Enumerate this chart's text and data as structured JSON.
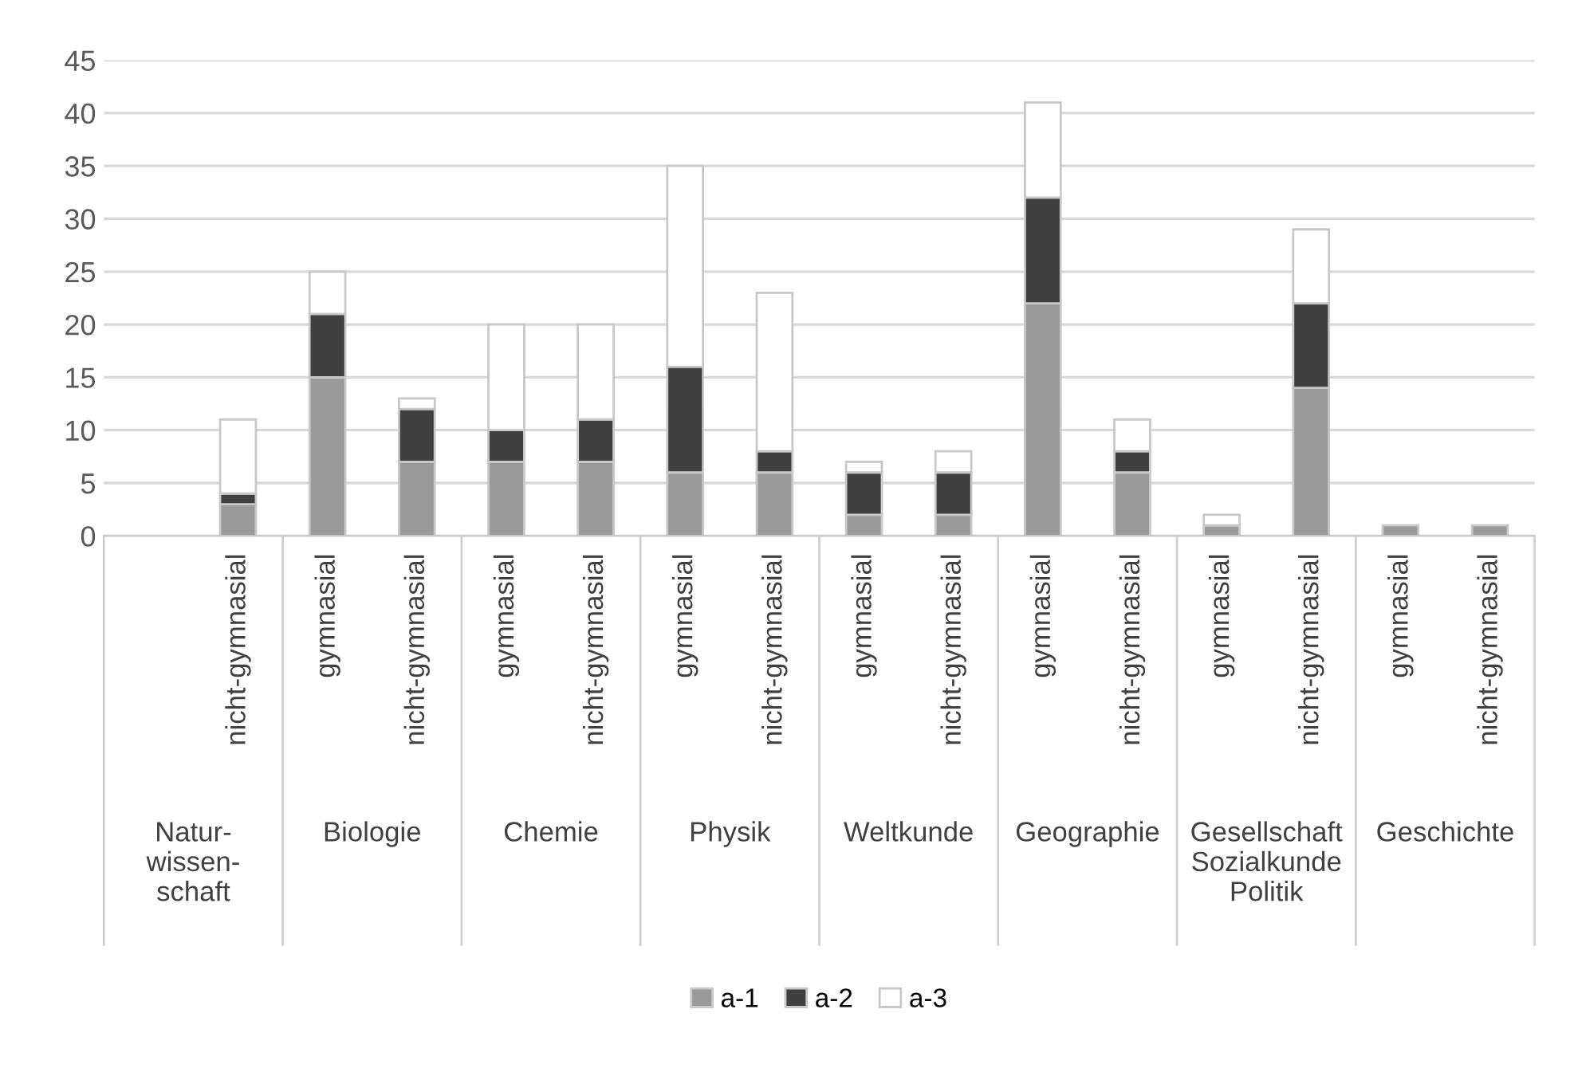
{
  "chart_data": {
    "type": "bar",
    "stacked": true,
    "categories": [
      null,
      "nicht-gymnasial",
      "gymnasial",
      "nicht-gymnasial",
      "gymnasial",
      "nicht-gymnasial",
      "gymnasial",
      "nicht-gymnasial",
      "gymnasial",
      "nicht-gymnasial",
      "gymnasial",
      "nicht-gymnasial",
      "gymnasial",
      "nicht-gymnasial",
      "gymnasial",
      "nicht-gymnasial"
    ],
    "series": [
      {
        "name": "a-1",
        "color": "#9a9a9a",
        "values": [
          null,
          3,
          15,
          7,
          7,
          7,
          6,
          6,
          2,
          2,
          22,
          6,
          1,
          14,
          1,
          1
        ]
      },
      {
        "name": "a-2",
        "color": "#404040",
        "values": [
          null,
          1,
          6,
          5,
          3,
          4,
          10,
          2,
          4,
          4,
          10,
          2,
          0,
          8,
          0,
          0
        ]
      },
      {
        "name": "a-3",
        "color": "#ffffff",
        "values": [
          null,
          7,
          4,
          1,
          10,
          9,
          19,
          15,
          1,
          2,
          9,
          3,
          1,
          7,
          0,
          0
        ]
      }
    ],
    "annotations": [
      "Natur-\nwissen-\nschaft",
      "Biologie",
      "Chemie",
      "Physik",
      "Weltkunde",
      "Geographie",
      "Gesellschaft\nSozialkunde\nPolitik",
      "Geschichte"
    ],
    "ylim": [
      0,
      45
    ],
    "yticks": [
      0,
      5,
      10,
      15,
      20,
      25,
      30,
      35,
      40,
      45
    ],
    "grid": "y",
    "legend": "bottom"
  }
}
